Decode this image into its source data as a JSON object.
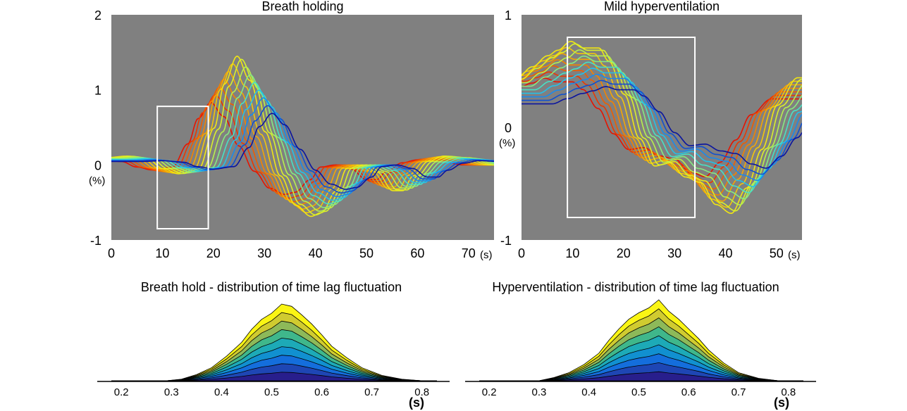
{
  "chart_data": [
    {
      "type": "line",
      "title": "Breath holding",
      "x_unit": "(s)",
      "y_unit": "(%)",
      "xlim": [
        0,
        75
      ],
      "ylim": [
        -1,
        2
      ],
      "x_ticks": [
        0,
        10,
        20,
        30,
        40,
        50,
        60,
        70
      ],
      "y_ticks": [
        2,
        1,
        0,
        -1
      ],
      "x_tick_labels": [
        "0",
        "10",
        "20",
        "30",
        "40",
        "50",
        "60",
        "70"
      ],
      "y_tick_labels": [
        "2",
        "1",
        "0",
        "-1"
      ],
      "background_color": "#808080",
      "grid": false,
      "colormap": "jet",
      "curve_count": 15,
      "curve_shift_range_s": [
        -6,
        6
      ],
      "template": {
        "x": [
          0,
          4,
          8,
          11,
          14,
          18,
          21,
          23,
          25.5,
          28,
          31,
          34,
          37,
          40,
          42,
          45,
          47,
          50,
          53,
          56,
          58,
          60,
          63,
          66,
          70,
          75
        ],
        "y": [
          0.1,
          0.12,
          0.08,
          -0.05,
          -0.12,
          -0.05,
          0.5,
          1.1,
          1.48,
          1.15,
          0.45,
          -0.15,
          -0.55,
          -0.7,
          -0.65,
          -0.35,
          -0.05,
          0.0,
          -0.1,
          -0.35,
          -0.35,
          -0.15,
          0.05,
          0.12,
          0.1,
          0.0
        ]
      },
      "highlight_box": {
        "x": [
          9,
          19
        ],
        "y": [
          -0.85,
          0.78
        ],
        "color": "#ffffff"
      }
    },
    {
      "type": "line",
      "title": "Mild hyperventilation",
      "x_unit": "(s)",
      "y_unit": "(%)",
      "xlim": [
        0,
        55
      ],
      "ylim": [
        -1,
        1
      ],
      "x_ticks": [
        0,
        10,
        20,
        30,
        40,
        50
      ],
      "y_ticks": [
        1,
        0,
        -1
      ],
      "x_tick_labels": [
        "0",
        "10",
        "20",
        "30",
        "40",
        "50"
      ],
      "y_tick_labels": [
        "1",
        "0",
        "-1"
      ],
      "background_color": "#808080",
      "grid": false,
      "colormap": "jet",
      "curve_count": 15,
      "curve_shift_range_s": [
        -6,
        6
      ],
      "template": {
        "x": [
          0,
          3,
          6,
          8,
          10.5,
          13,
          16,
          18,
          21,
          24,
          27,
          30,
          33,
          36,
          39,
          42,
          45,
          48,
          51,
          55
        ],
        "y": [
          0.45,
          0.55,
          0.65,
          0.7,
          0.78,
          0.72,
          0.72,
          0.6,
          0.3,
          -0.1,
          -0.35,
          -0.32,
          -0.45,
          -0.5,
          -0.7,
          -0.78,
          -0.55,
          -0.2,
          0.2,
          0.45
        ]
      },
      "highlight_box": {
        "x": [
          9,
          34
        ],
        "y": [
          -0.8,
          0.8
        ],
        "color": "#ffffff"
      }
    },
    {
      "type": "area",
      "title": "Breath hold - distribution of time lag fluctuation",
      "x_unit": "(s)",
      "xlim": [
        0.18,
        0.83
      ],
      "x_ticks": [
        0.2,
        0.3,
        0.4,
        0.5,
        0.6,
        0.7,
        0.8
      ],
      "x_tick_labels": [
        "0.2",
        "0.3",
        "0.4",
        "0.5",
        "0.6",
        "0.7",
        "0.8"
      ],
      "stacked": true,
      "colormap": "parula",
      "layer_count": 9,
      "total_envelope": {
        "x": [
          0.18,
          0.29,
          0.32,
          0.35,
          0.38,
          0.41,
          0.44,
          0.46,
          0.48,
          0.5,
          0.52,
          0.54,
          0.56,
          0.58,
          0.6,
          0.62,
          0.65,
          0.68,
          0.72,
          0.76,
          0.8,
          0.83
        ],
        "y": [
          0,
          0,
          0.02,
          0.08,
          0.17,
          0.32,
          0.5,
          0.67,
          0.8,
          0.88,
          1.0,
          0.97,
          0.86,
          0.74,
          0.6,
          0.45,
          0.3,
          0.17,
          0.07,
          0.02,
          0,
          0
        ]
      }
    },
    {
      "type": "area",
      "title": "Hyperventilation - distribution of time lag fluctuation",
      "x_unit": "(s)",
      "xlim": [
        0.18,
        0.83
      ],
      "x_ticks": [
        0.2,
        0.3,
        0.4,
        0.5,
        0.6,
        0.7,
        0.8
      ],
      "x_tick_labels": [
        "0.2",
        "0.3",
        "0.4",
        "0.5",
        "0.6",
        "0.7",
        "0.8"
      ],
      "stacked": true,
      "colormap": "parula",
      "layer_count": 9,
      "total_envelope": {
        "x": [
          0.18,
          0.3,
          0.33,
          0.36,
          0.39,
          0.42,
          0.44,
          0.46,
          0.48,
          0.5,
          0.52,
          0.54,
          0.56,
          0.58,
          0.6,
          0.62,
          0.64,
          0.67,
          0.7,
          0.74,
          0.78,
          0.83
        ],
        "y": [
          0,
          0,
          0.04,
          0.1,
          0.2,
          0.34,
          0.5,
          0.64,
          0.76,
          0.84,
          0.9,
          1.0,
          0.86,
          0.76,
          0.64,
          0.52,
          0.38,
          0.22,
          0.1,
          0.03,
          0,
          0
        ]
      }
    }
  ]
}
